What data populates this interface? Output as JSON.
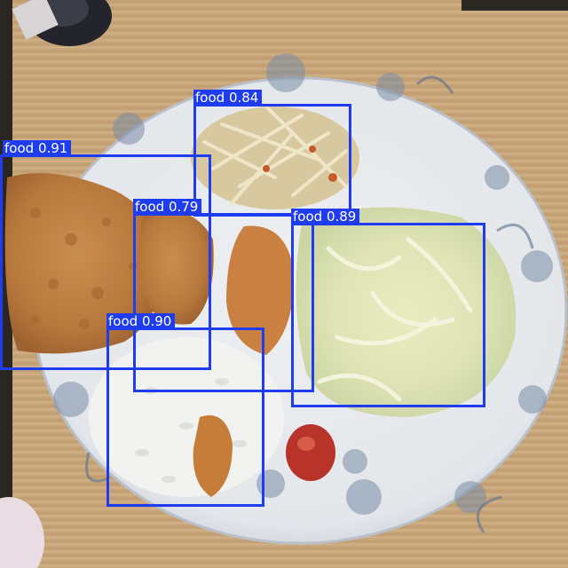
{
  "detections": [
    {
      "class": "food",
      "score": "0.84"
    },
    {
      "class": "food",
      "score": "0.91"
    },
    {
      "class": "food",
      "score": "0.79"
    },
    {
      "class": "food",
      "score": "0.89"
    },
    {
      "class": "food",
      "score": "0.90"
    }
  ],
  "colors": {
    "box": "#1f3cf0",
    "label_text": "#ffffff",
    "table": "#c9a77d",
    "plate": "#e9ecef"
  }
}
